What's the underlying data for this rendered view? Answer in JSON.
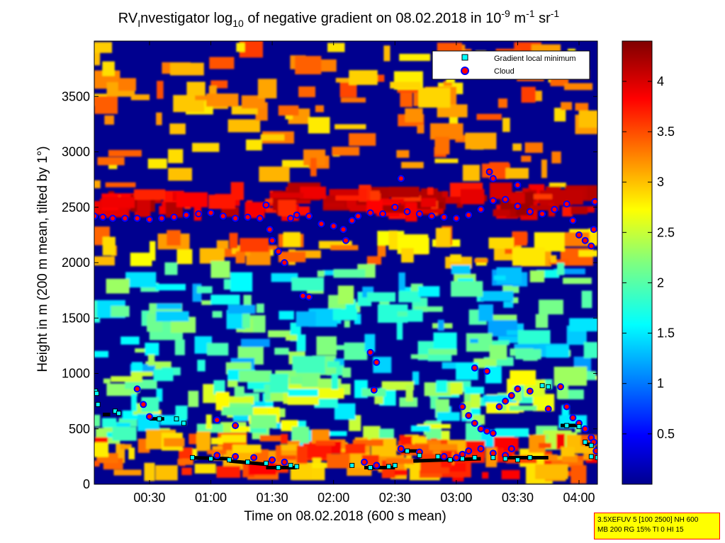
{
  "chart_data": {
    "type": "heatmap",
    "title": {
      "prefix": "RV",
      "sub1": "I",
      "mid": "nvestigator log",
      "sub2": "10",
      "main": " of negative gradient on 08.02.2018 in 10",
      "sup1": "-9",
      "unit1": " m",
      "sup2": "-1",
      "unit2": " sr",
      "sup3": "-1"
    },
    "xlabel": "Time on 08.02.2018 (600 s mean)",
    "ylabel": "Height in m (200 m mean, tilted by 1°)",
    "xlim_hours": [
      0.05,
      4.15
    ],
    "ylim": [
      0,
      4000
    ],
    "x_ticks": [
      {
        "value": 0.5,
        "label": "00:30"
      },
      {
        "value": 1.0,
        "label": "01:00"
      },
      {
        "value": 1.5,
        "label": "01:30"
      },
      {
        "value": 2.0,
        "label": "02:00"
      },
      {
        "value": 2.5,
        "label": "02:30"
      },
      {
        "value": 3.0,
        "label": "03:00"
      },
      {
        "value": 3.5,
        "label": "03:30"
      },
      {
        "value": 4.0,
        "label": "04:00"
      }
    ],
    "y_ticks": [
      0,
      500,
      1000,
      1500,
      2000,
      2500,
      3000,
      3500
    ],
    "colorbar": {
      "colormap": "jet",
      "range": [
        0,
        4.4
      ],
      "ticks": [
        {
          "value": 0.5,
          "label": "0.5"
        },
        {
          "value": 1.0,
          "label": "1"
        },
        {
          "value": 1.5,
          "label": "1.5"
        },
        {
          "value": 2.0,
          "label": "2"
        },
        {
          "value": 2.5,
          "label": "2.5"
        },
        {
          "value": 3.0,
          "label": "3"
        },
        {
          "value": 3.5,
          "label": "3.5"
        },
        {
          "value": 4.0,
          "label": "4"
        }
      ]
    },
    "legend": {
      "position": "top-right",
      "entries": [
        "Gradient local minimum",
        "Cloud"
      ]
    },
    "series": [
      {
        "name": "Cloud",
        "marker": "circle",
        "color": "#0000ff",
        "fill": "#ff0000",
        "points": [
          [
            0.05,
            2420
          ],
          [
            0.12,
            2410
          ],
          [
            0.2,
            2400
          ],
          [
            0.3,
            2400
          ],
          [
            0.4,
            2400
          ],
          [
            0.5,
            2390
          ],
          [
            0.6,
            2400
          ],
          [
            0.7,
            2410
          ],
          [
            0.8,
            2430
          ],
          [
            0.9,
            2440
          ],
          [
            1.0,
            2450
          ],
          [
            1.1,
            2420
          ],
          [
            1.2,
            2400
          ],
          [
            1.3,
            2410
          ],
          [
            1.4,
            2400
          ],
          [
            1.45,
            2520
          ],
          [
            1.48,
            2300
          ],
          [
            1.5,
            2200
          ],
          [
            1.55,
            2100
          ],
          [
            1.6,
            2000
          ],
          [
            1.65,
            2400
          ],
          [
            1.7,
            2430
          ],
          [
            1.8,
            2420
          ],
          [
            1.9,
            2350
          ],
          [
            2.0,
            2330
          ],
          [
            2.08,
            2300
          ],
          [
            2.1,
            2200
          ],
          [
            2.15,
            2380
          ],
          [
            2.2,
            2420
          ],
          [
            2.3,
            2450
          ],
          [
            2.4,
            2440
          ],
          [
            2.5,
            2500
          ],
          [
            2.6,
            2460
          ],
          [
            2.7,
            2440
          ],
          [
            2.8,
            2420
          ],
          [
            2.9,
            2410
          ],
          [
            3.0,
            2400
          ],
          [
            3.1,
            2430
          ],
          [
            3.2,
            2480
          ],
          [
            3.3,
            2560
          ],
          [
            3.4,
            2570
          ],
          [
            3.5,
            2510
          ],
          [
            3.6,
            2460
          ],
          [
            3.7,
            2440
          ],
          [
            3.8,
            2480
          ],
          [
            3.9,
            2530
          ],
          [
            3.95,
            2380
          ],
          [
            4.0,
            2250
          ],
          [
            4.05,
            2200
          ],
          [
            4.1,
            2150
          ],
          [
            4.12,
            2300
          ],
          [
            4.13,
            2550
          ],
          [
            2.55,
            2760
          ],
          [
            3.27,
            2820
          ],
          [
            3.3,
            2760
          ],
          [
            3.5,
            2700
          ],
          [
            2.3,
            1190
          ],
          [
            2.33,
            850
          ],
          [
            2.35,
            1100
          ],
          [
            1.75,
            1700
          ],
          [
            1.8,
            1690
          ],
          [
            0.4,
            860
          ],
          [
            0.45,
            720
          ],
          [
            0.5,
            610
          ],
          [
            1.05,
            580
          ],
          [
            1.2,
            530
          ],
          [
            1.05,
            260
          ],
          [
            1.2,
            250
          ],
          [
            1.35,
            240
          ],
          [
            1.5,
            220
          ],
          [
            1.6,
            200
          ],
          [
            2.25,
            200
          ],
          [
            2.35,
            170
          ],
          [
            2.55,
            320
          ],
          [
            2.7,
            290
          ],
          [
            2.9,
            250
          ],
          [
            3.0,
            240
          ],
          [
            3.05,
            270
          ],
          [
            3.1,
            300
          ],
          [
            3.2,
            320
          ],
          [
            3.3,
            280
          ],
          [
            3.4,
            260
          ],
          [
            3.45,
            320
          ],
          [
            3.05,
            700
          ],
          [
            3.1,
            620
          ],
          [
            3.15,
            550
          ],
          [
            3.2,
            500
          ],
          [
            3.25,
            480
          ],
          [
            3.3,
            460
          ],
          [
            3.35,
            700
          ],
          [
            3.4,
            750
          ],
          [
            3.45,
            800
          ],
          [
            3.5,
            860
          ],
          [
            3.6,
            840
          ],
          [
            3.75,
            680
          ],
          [
            3.85,
            880
          ],
          [
            3.9,
            700
          ],
          [
            3.95,
            600
          ],
          [
            4.0,
            550
          ],
          [
            4.05,
            500
          ],
          [
            4.1,
            420
          ],
          [
            4.12,
            380
          ],
          [
            4.14,
            300
          ],
          [
            3.15,
            1050
          ],
          [
            3.25,
            1020
          ]
        ]
      },
      {
        "name": "Gradient local minimum",
        "marker": "square",
        "color": "#000000",
        "fill": "#00ffff",
        "points": [
          [
            0.06,
            840
          ],
          [
            0.07,
            820
          ],
          [
            0.08,
            720
          ],
          [
            0.22,
            660
          ],
          [
            0.25,
            640
          ],
          [
            0.58,
            590
          ],
          [
            0.72,
            590
          ],
          [
            0.78,
            550
          ],
          [
            0.85,
            240
          ],
          [
            1.0,
            230
          ],
          [
            1.15,
            220
          ],
          [
            1.3,
            200
          ],
          [
            1.45,
            190
          ],
          [
            1.55,
            150
          ],
          [
            1.65,
            170
          ],
          [
            1.7,
            160
          ],
          [
            2.15,
            170
          ],
          [
            2.3,
            150
          ],
          [
            2.45,
            160
          ],
          [
            2.5,
            170
          ],
          [
            2.6,
            300
          ],
          [
            2.7,
            260
          ],
          [
            2.85,
            250
          ],
          [
            2.95,
            220
          ],
          [
            3.05,
            230
          ],
          [
            3.15,
            240
          ],
          [
            3.3,
            240
          ],
          [
            3.4,
            230
          ],
          [
            3.5,
            220
          ],
          [
            3.6,
            240
          ],
          [
            3.7,
            890
          ],
          [
            3.75,
            880
          ],
          [
            3.9,
            530
          ],
          [
            4.0,
            520
          ],
          [
            4.05,
            380
          ],
          [
            4.1,
            350
          ],
          [
            4.1,
            250
          ],
          [
            4.15,
            240
          ]
        ]
      }
    ],
    "segments_black": [
      [
        0.12,
        630,
        0.18,
        630
      ],
      [
        0.5,
        590,
        0.62,
        590
      ],
      [
        0.85,
        240,
        1.15,
        230
      ],
      [
        1.15,
        210,
        1.45,
        180
      ],
      [
        1.45,
        150,
        1.7,
        150
      ],
      [
        2.25,
        150,
        2.5,
        150
      ],
      [
        2.55,
        300,
        2.7,
        300
      ],
      [
        2.65,
        210,
        3.2,
        230
      ],
      [
        3.4,
        240,
        3.75,
        240
      ],
      [
        3.85,
        530,
        4.0,
        530
      ],
      [
        4.05,
        360,
        4.1,
        360
      ]
    ]
  },
  "params": {
    "line1": "3.5XEFUV 5 [100 2500] NH 600",
    "line2": "MB 200 RG 15% TI 0 HI 15"
  }
}
